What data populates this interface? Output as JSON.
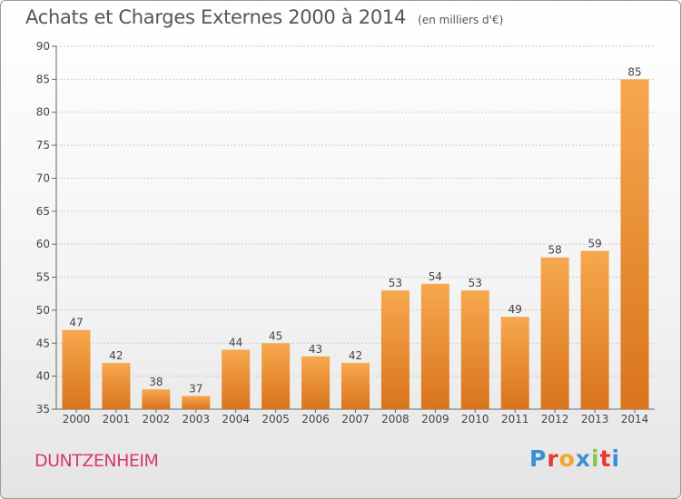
{
  "header": {
    "title": "Achats et Charges Externes 2000 à 2014",
    "unit": "(en milliers d'€)"
  },
  "footer": {
    "commune": "DUNTZENHEIM",
    "logo_letters": [
      "P",
      "r",
      "o",
      "x",
      "i",
      "t",
      "i"
    ],
    "logo_colors": [
      "#3a8fd6",
      "#e63a2e",
      "#f5a623",
      "#3a8fd6",
      "#8bc34a",
      "#e63a2e",
      "#3a8fd6"
    ]
  },
  "colors": {
    "bar_light": "#f7a84e",
    "bar_dark": "#d9741c",
    "grid": "#cccccc",
    "axis_text": "#444444",
    "title": "#555555",
    "commune": "#d43a6a"
  },
  "chart_data": {
    "type": "bar",
    "categories": [
      "2000",
      "2001",
      "2002",
      "2003",
      "2004",
      "2005",
      "2006",
      "2007",
      "2008",
      "2009",
      "2010",
      "2011",
      "2012",
      "2013",
      "2014"
    ],
    "values": [
      47,
      42,
      38,
      37,
      44,
      45,
      43,
      42,
      53,
      54,
      53,
      49,
      58,
      59,
      85
    ],
    "title": "Achats et Charges Externes 2000 à 2014",
    "xlabel": "",
    "ylabel": "",
    "ylim": [
      35,
      90
    ],
    "yticks": [
      35,
      40,
      45,
      50,
      55,
      60,
      65,
      70,
      75,
      80,
      85,
      90
    ],
    "grid": true,
    "data_labels": true
  }
}
